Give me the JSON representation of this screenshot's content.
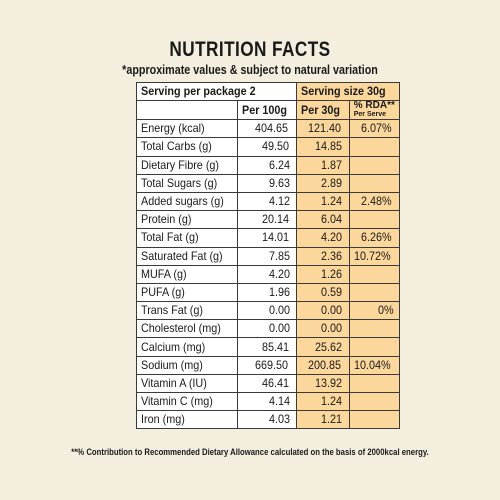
{
  "title": "NUTRITION FACTS",
  "subtitle": "*approximate values & subject to natural variation",
  "header": {
    "serving_per_package": "Serving per package 2",
    "serving_size": "Serving size 30g",
    "col_100g": "Per 100g",
    "col_30g": "Per 30g",
    "col_rda_main": "% RDA**",
    "col_rda_sub": "Per Serve"
  },
  "rows": [
    {
      "name": "Energy (kcal)",
      "per100": "404.65",
      "per30": "121.40",
      "rda": "6.07%"
    },
    {
      "name": "Total Carbs (g)",
      "per100": "49.50",
      "per30": "14.85",
      "rda": ""
    },
    {
      "name": "Dietary Fibre (g)",
      "per100": "6.24",
      "per30": "1.87",
      "rda": ""
    },
    {
      "name": "Total Sugars (g)",
      "per100": "9.63",
      "per30": "2.89",
      "rda": ""
    },
    {
      "name": "Added sugars (g)",
      "per100": "4.12",
      "per30": "1.24",
      "rda": "2.48%"
    },
    {
      "name": "Protein (g)",
      "per100": "20.14",
      "per30": "6.04",
      "rda": ""
    },
    {
      "name": "Total Fat (g)",
      "per100": "14.01",
      "per30": "4.20",
      "rda": "6.26%"
    },
    {
      "name": "Saturated Fat (g)",
      "per100": "7.85",
      "per30": "2.36",
      "rda": "10.72%"
    },
    {
      "name": "MUFA (g)",
      "per100": "4.20",
      "per30": "1.26",
      "rda": ""
    },
    {
      "name": "PUFA (g)",
      "per100": "1.96",
      "per30": "0.59",
      "rda": ""
    },
    {
      "name": "Trans Fat (g)",
      "per100": "0.00",
      "per30": "0.00",
      "rda": "0%"
    },
    {
      "name": "Cholesterol (mg)",
      "per100": "0.00",
      "per30": "0.00",
      "rda": ""
    },
    {
      "name": "Calcium (mg)",
      "per100": "85.41",
      "per30": "25.62",
      "rda": ""
    },
    {
      "name": "Sodium (mg)",
      "per100": "669.50",
      "per30": "200.85",
      "rda": "10.04%"
    },
    {
      "name": "Vitamin A (IU)",
      "per100": "46.41",
      "per30": "13.92",
      "rda": ""
    },
    {
      "name": "Vitamin C (mg)",
      "per100": "4.14",
      "per30": "1.24",
      "rda": ""
    },
    {
      "name": "Iron (mg)",
      "per100": "4.03",
      "per30": "1.21",
      "rda": ""
    }
  ],
  "footnote": "**% Contribution to Recommended Dietary Allowance calculated on the basis of 2000kcal energy.",
  "colors": {
    "background": "#f3eedd",
    "highlight": "#fcd79c",
    "border": "#3a3a3a"
  }
}
